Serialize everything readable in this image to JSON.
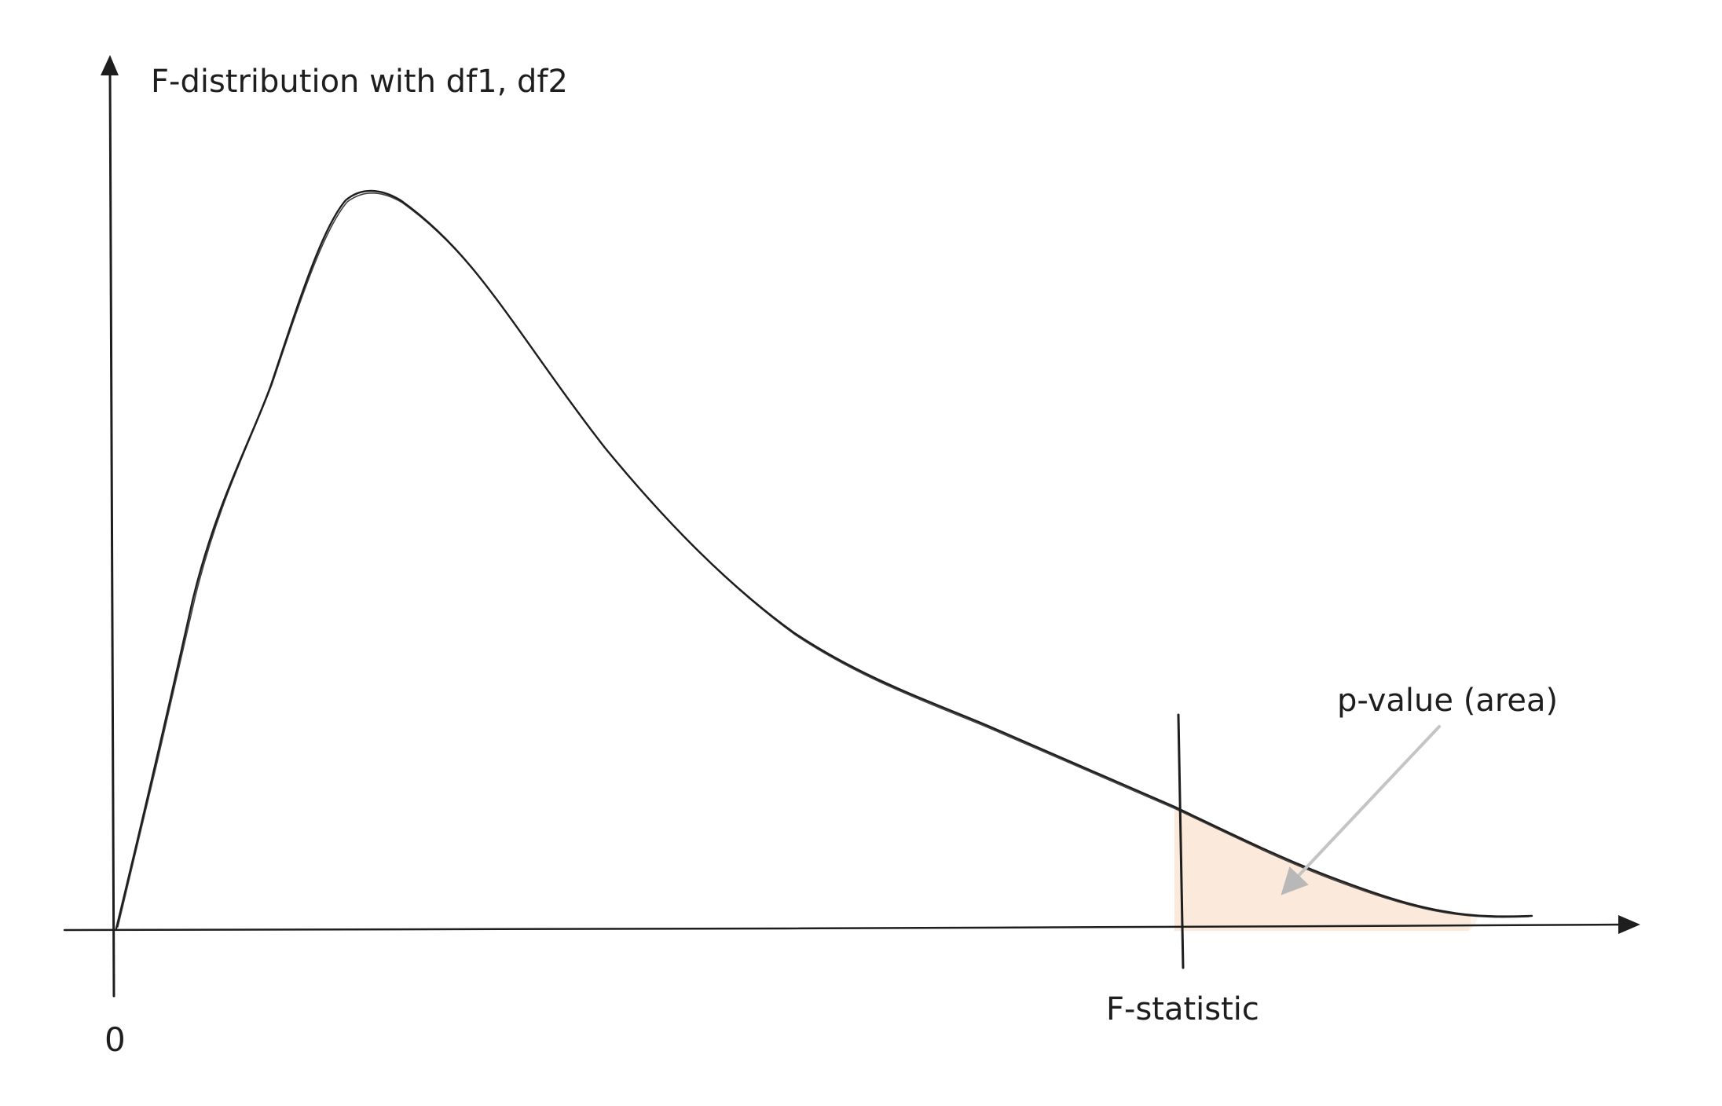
{
  "title": "F-distribution with df1, df2",
  "origin_label": "0",
  "statistic_label": "F-statistic",
  "pvalue_label": "p-value (area)",
  "colors": {
    "stroke": "#1e1e1e",
    "shaded_area": "#fbeadb",
    "annotation_arrow": "#c4c4c4"
  }
}
